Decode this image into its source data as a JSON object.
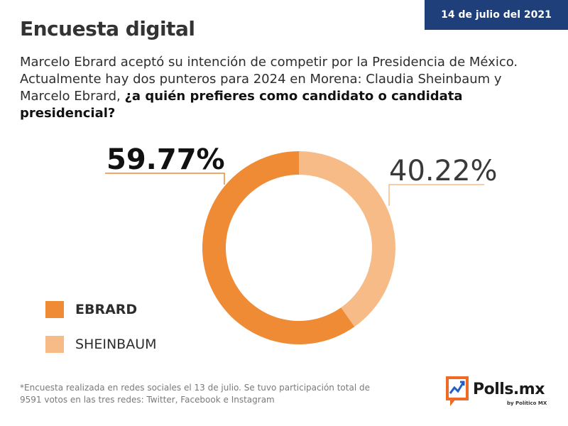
{
  "header": {
    "date": "14 de julio del 2021",
    "title": "Encuesta digital"
  },
  "intro": {
    "text": "Marcelo Ebrard aceptó su intención de competir por la Presidencia de México. Actualmente hay dos punteros para 2024 en Morena: Claudia Sheinbaum y Marcelo Ebrard, ",
    "question": "¿a quién prefieres como candidato o candidata presidencial?"
  },
  "chart_data": {
    "type": "pie",
    "donut": true,
    "categories": [
      "EBRARD",
      "SHEINBAUM"
    ],
    "values": [
      59.77,
      40.22
    ],
    "data_labels": [
      "59.77%",
      "40.22%"
    ],
    "colors": [
      "#ef8a35",
      "#f6bb87"
    ],
    "legend_position": "bottom-left"
  },
  "footnote": "*Encuesta realizada en redes sociales el 13 de julio. Se tuvo participación total de 9591 votos en las tres redes: Twitter, Facebook e Instagram",
  "logo": {
    "name": "Polls.mx",
    "tagline": "by Político MX"
  }
}
